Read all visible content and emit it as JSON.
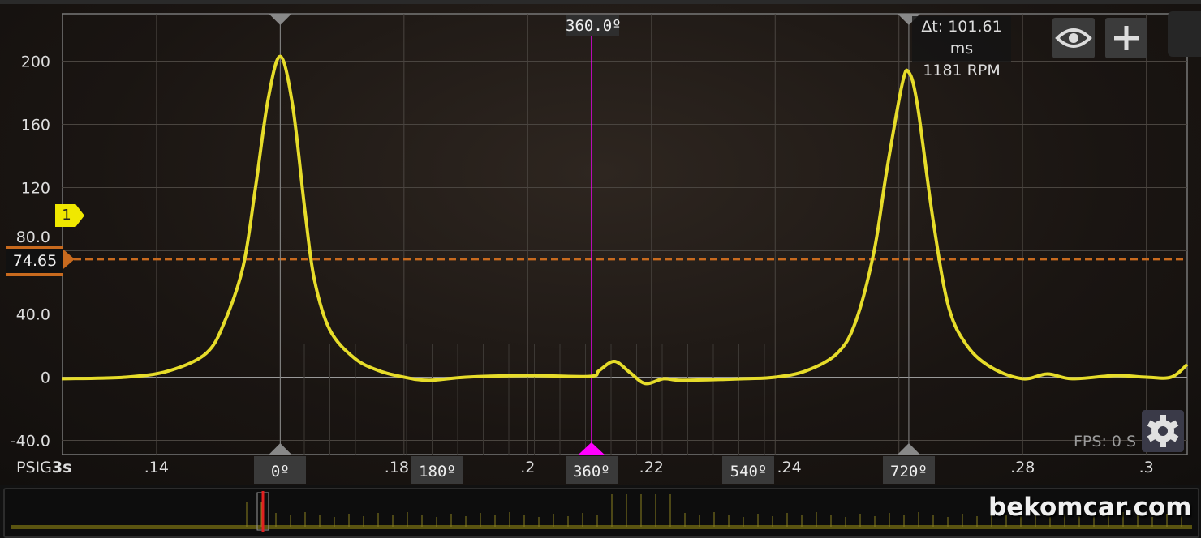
{
  "chart_data": {
    "type": "line",
    "xlim": [
      0.1248,
      0.3066
    ],
    "ylim": [
      -49,
      230
    ],
    "x_ticks": [
      {
        "value": 0.14,
        "label": ".14"
      },
      {
        "value": 0.18,
        "label": ".18"
      },
      {
        "value": 0.2,
        "label": ".2"
      },
      {
        "value": 0.22,
        "label": ".22"
      },
      {
        "value": 0.24,
        "label": ".24"
      },
      {
        "value": 0.28,
        "label": ".28"
      },
      {
        "value": 0.3,
        "label": ".3"
      }
    ],
    "x_grid": [
      0.14,
      0.16,
      0.18,
      0.2,
      0.22,
      0.24,
      0.26,
      0.28,
      0.3
    ],
    "y_ticks": [
      {
        "value": 200,
        "label": "200"
      },
      {
        "value": 160,
        "label": "160"
      },
      {
        "value": 120,
        "label": "120"
      },
      {
        "value": 80,
        "label": "80.0"
      },
      {
        "value": 40,
        "label": "40.0"
      },
      {
        "value": 0,
        "label": "0"
      },
      {
        "value": -40,
        "label": "-40.0"
      }
    ],
    "grid": true,
    "unit_label": "PSIG",
    "timebase": "3s",
    "series": [
      {
        "color": "#e6dc2a",
        "points": [
          [
            0.1248,
            -1
          ],
          [
            0.135,
            0
          ],
          [
            0.142,
            4
          ],
          [
            0.148,
            15
          ],
          [
            0.151,
            35
          ],
          [
            0.154,
            70
          ],
          [
            0.156,
            120
          ],
          [
            0.158,
            175
          ],
          [
            0.16,
            203
          ],
          [
            0.162,
            172
          ],
          [
            0.164,
            105
          ],
          [
            0.1655,
            62
          ],
          [
            0.168,
            30
          ],
          [
            0.172,
            12
          ],
          [
            0.176,
            4
          ],
          [
            0.18,
            0
          ],
          [
            0.184,
            -2
          ],
          [
            0.19,
            0
          ],
          [
            0.2,
            1
          ],
          [
            0.21,
            0.5
          ],
          [
            0.2115,
            4
          ],
          [
            0.214,
            10
          ],
          [
            0.2165,
            3
          ],
          [
            0.219,
            -4
          ],
          [
            0.222,
            -1
          ],
          [
            0.225,
            -2
          ],
          [
            0.235,
            -1
          ],
          [
            0.24,
            0
          ],
          [
            0.245,
            4
          ],
          [
            0.25,
            15
          ],
          [
            0.253,
            35
          ],
          [
            0.256,
            80
          ],
          [
            0.258,
            130
          ],
          [
            0.2605,
            185
          ],
          [
            0.2616,
            193
          ],
          [
            0.263,
            172
          ],
          [
            0.2655,
            100
          ],
          [
            0.268,
            45
          ],
          [
            0.271,
            20
          ],
          [
            0.275,
            6
          ],
          [
            0.28,
            -1
          ],
          [
            0.284,
            2
          ],
          [
            0.288,
            -1
          ],
          [
            0.295,
            1
          ],
          [
            0.3,
            0
          ],
          [
            0.304,
            0
          ],
          [
            0.3066,
            8
          ]
        ]
      }
    ],
    "threshold": {
      "value": 74.65,
      "label": "74.65",
      "color": "#c86a1e"
    },
    "channel_marker": {
      "label": "1",
      "value": 104,
      "color": "#f0e800"
    },
    "cursors": [
      {
        "t": 0.16,
        "label": "0º"
      },
      {
        "t": 0.2616,
        "label": "720º"
      }
    ],
    "degree_marks": [
      {
        "t": 0.1854,
        "label": "180º"
      },
      {
        "t": 0.2103,
        "label": "360º"
      },
      {
        "t": 0.2357,
        "label": "540º"
      }
    ],
    "active_cursor": {
      "t": 0.2103,
      "label": "360.0º",
      "color": "#ff00ff"
    }
  },
  "measurement": {
    "delta_t": "Δt: 101.61 ms",
    "rpm": "1181 RPM"
  },
  "toolbar": {
    "eye_icon": "eye-icon",
    "plus_icon": "plus-icon",
    "gear_icon": "gear-icon"
  },
  "status": {
    "fps": "FPS: 0  S"
  },
  "watermark": "bekomcar.com"
}
